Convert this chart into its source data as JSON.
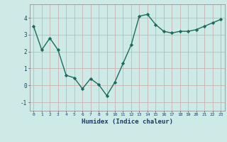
{
  "x": [
    0,
    1,
    2,
    3,
    4,
    5,
    6,
    7,
    8,
    9,
    10,
    11,
    12,
    13,
    14,
    15,
    16,
    17,
    18,
    19,
    20,
    21,
    22,
    23
  ],
  "y": [
    3.5,
    2.1,
    2.8,
    2.1,
    0.6,
    0.45,
    -0.2,
    0.4,
    0.05,
    -0.6,
    0.2,
    1.3,
    2.4,
    4.1,
    4.2,
    3.6,
    3.2,
    3.1,
    3.2,
    3.2,
    3.3,
    3.5,
    3.7,
    3.9
  ],
  "line_color": "#1a6b5e",
  "marker": "D",
  "marker_size": 2.2,
  "bg_color": "#ceeae6",
  "grid_color": "#c8a8a8",
  "xlabel": "Humidex (Indice chaleur)",
  "xlabel_color": "#1a3a6e",
  "tick_color": "#1a3a6e",
  "ylim": [
    -1.5,
    4.8
  ],
  "xlim": [
    -0.5,
    23.5
  ],
  "yticks": [
    -1,
    0,
    1,
    2,
    3,
    4
  ],
  "xticks": [
    0,
    1,
    2,
    3,
    4,
    5,
    6,
    7,
    8,
    9,
    10,
    11,
    12,
    13,
    14,
    15,
    16,
    17,
    18,
    19,
    20,
    21,
    22,
    23
  ],
  "line_width": 1.0
}
